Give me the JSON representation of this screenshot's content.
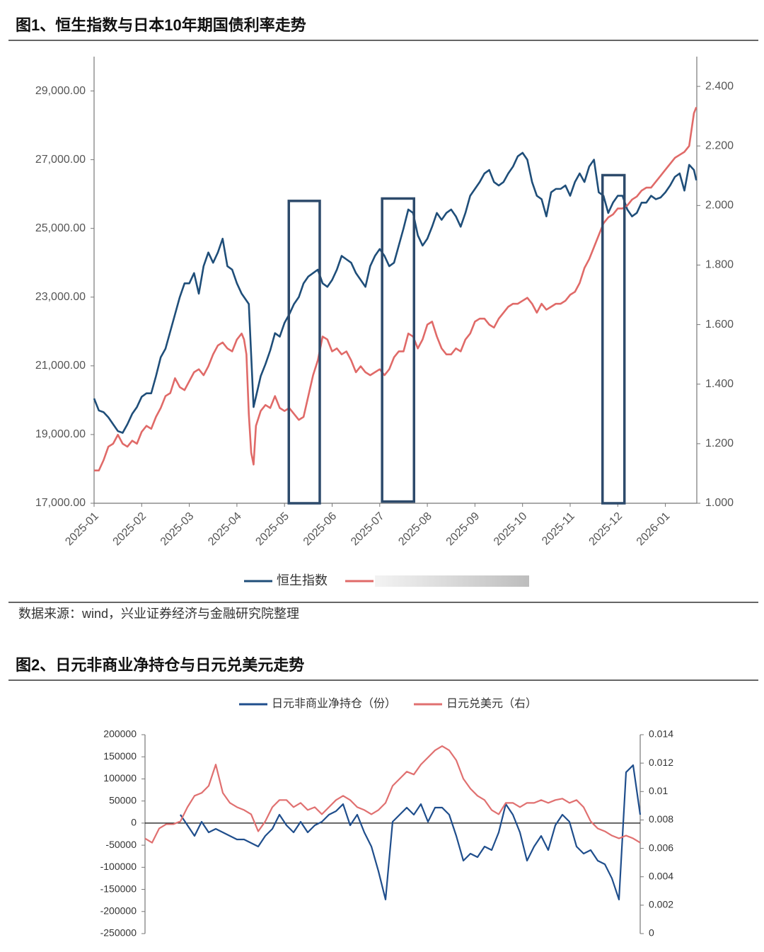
{
  "chart_data": [
    {
      "type": "line",
      "title": "图1、恒生指数与日本10年期国债利率走势",
      "x": [
        0,
        0.1,
        0.2,
        0.3,
        0.4,
        0.5,
        0.6,
        0.7,
        0.8,
        0.9,
        1,
        1.1,
        1.2,
        1.3,
        1.4,
        1.5,
        1.6,
        1.7,
        1.8,
        1.9,
        2,
        2.1,
        2.2,
        2.3,
        2.4,
        2.5,
        2.6,
        2.7,
        2.8,
        2.9,
        3,
        3.1,
        3.15,
        3.2,
        3.25,
        3.3,
        3.35,
        3.4,
        3.5,
        3.6,
        3.7,
        3.8,
        3.9,
        4,
        4.1,
        4.2,
        4.3,
        4.4,
        4.5,
        4.6,
        4.7,
        4.8,
        4.9,
        5,
        5.1,
        5.2,
        5.3,
        5.4,
        5.5,
        5.6,
        5.7,
        5.8,
        5.9,
        6,
        6.1,
        6.2,
        6.3,
        6.4,
        6.5,
        6.6,
        6.7,
        6.8,
        6.9,
        7,
        7.1,
        7.2,
        7.3,
        7.4,
        7.5,
        7.6,
        7.7,
        7.8,
        7.9,
        8,
        8.1,
        8.2,
        8.3,
        8.4,
        8.5,
        8.6,
        8.7,
        8.8,
        8.9,
        9,
        9.1,
        9.2,
        9.3,
        9.4,
        9.5,
        9.6,
        9.7,
        9.8,
        9.9,
        10,
        10.1,
        10.2,
        10.3,
        10.4,
        10.5,
        10.6,
        10.7,
        10.8,
        10.9,
        11,
        11.1,
        11.2,
        11.3,
        11.4,
        11.5,
        11.6,
        11.7,
        11.8,
        11.9,
        12,
        12.1,
        12.2,
        12.3,
        12.4,
        12.5,
        12.6,
        12.65
      ],
      "series": [
        {
          "name": "恒生指数",
          "color": "#1f4e79",
          "values": [
            20050,
            19700,
            19650,
            19500,
            19300,
            19100,
            19050,
            19300,
            19600,
            19800,
            20100,
            20200,
            20200,
            20700,
            21250,
            21500,
            22000,
            22500,
            23000,
            23400,
            23400,
            23700,
            23100,
            23900,
            24300,
            24000,
            24300,
            24700,
            23900,
            23800,
            23400,
            23100,
            23000,
            22900,
            22800,
            21300,
            19800,
            20100,
            20700,
            21050,
            21450,
            21950,
            21850,
            22250,
            22500,
            22800,
            23000,
            23400,
            23600,
            23700,
            23800,
            23400,
            23300,
            23500,
            23800,
            24200,
            24100,
            24000,
            23700,
            23500,
            23300,
            23900,
            24200,
            24400,
            24200,
            23900,
            24000,
            24500,
            25000,
            25550,
            25450,
            24800,
            24500,
            24700,
            25050,
            25450,
            25250,
            25450,
            25550,
            25350,
            25050,
            25450,
            25950,
            26150,
            26350,
            26600,
            26700,
            26350,
            26250,
            26350,
            26600,
            26800,
            27100,
            27200,
            27000,
            26350,
            25950,
            25850,
            25350,
            26050,
            26150,
            26150,
            26250,
            25950,
            26350,
            26600,
            26350,
            26800,
            27000,
            26050,
            25950,
            25450,
            25750,
            25950,
            25950,
            25550,
            25350,
            25450,
            25750,
            25750,
            25950,
            25850,
            25900,
            26050,
            26250,
            26500,
            26600,
            26100,
            26850,
            26700,
            26400
          ]
        },
        {
          "color": "#e06a68",
          "axis": "y2",
          "values": [
            1.11,
            1.11,
            1.145,
            1.19,
            1.2,
            1.23,
            1.2,
            1.19,
            1.21,
            1.2,
            1.24,
            1.26,
            1.25,
            1.29,
            1.32,
            1.36,
            1.37,
            1.42,
            1.39,
            1.38,
            1.41,
            1.44,
            1.45,
            1.43,
            1.46,
            1.5,
            1.53,
            1.54,
            1.52,
            1.51,
            1.55,
            1.57,
            1.55,
            1.5,
            1.3,
            1.17,
            1.13,
            1.26,
            1.31,
            1.33,
            1.32,
            1.36,
            1.32,
            1.31,
            1.32,
            1.3,
            1.28,
            1.29,
            1.36,
            1.43,
            1.48,
            1.56,
            1.55,
            1.51,
            1.52,
            1.5,
            1.51,
            1.48,
            1.44,
            1.46,
            1.44,
            1.43,
            1.44,
            1.45,
            1.43,
            1.45,
            1.49,
            1.51,
            1.51,
            1.57,
            1.56,
            1.52,
            1.55,
            1.6,
            1.61,
            1.56,
            1.52,
            1.5,
            1.5,
            1.52,
            1.51,
            1.55,
            1.57,
            1.61,
            1.62,
            1.62,
            1.6,
            1.59,
            1.62,
            1.64,
            1.66,
            1.67,
            1.67,
            1.68,
            1.69,
            1.67,
            1.64,
            1.67,
            1.65,
            1.66,
            1.67,
            1.67,
            1.68,
            1.7,
            1.71,
            1.74,
            1.79,
            1.82,
            1.86,
            1.9,
            1.94,
            1.96,
            1.97,
            1.99,
            1.99,
            2,
            2.02,
            2.03,
            2.05,
            2.06,
            2.06,
            2.08,
            2.1,
            2.12,
            2.14,
            2.16,
            2.17,
            2.18,
            2.2,
            2.31,
            2.33
          ]
        }
      ],
      "xlim": [
        0,
        12.66
      ],
      "xticks": [
        {
          "value": 0,
          "label": "2025-01"
        },
        {
          "value": 1,
          "label": "2025-02"
        },
        {
          "value": 2,
          "label": "2025-03"
        },
        {
          "value": 3,
          "label": "2025-04"
        },
        {
          "value": 4,
          "label": "2025-05"
        },
        {
          "value": 5,
          "label": "2025-06"
        },
        {
          "value": 6,
          "label": "2025-07"
        },
        {
          "value": 7,
          "label": "2025-08"
        },
        {
          "value": 8,
          "label": "2025-09"
        },
        {
          "value": 9,
          "label": "2025-10"
        },
        {
          "value": 10,
          "label": "2025-11"
        },
        {
          "value": 11,
          "label": "2025-12"
        },
        {
          "value": 12,
          "label": "2026-01"
        }
      ],
      "ylim": [
        17000,
        30000
      ],
      "yticks": [
        {
          "value": 17000,
          "label": "17,000.00"
        },
        {
          "value": 19000,
          "label": "19,000.00"
        },
        {
          "value": 21000,
          "label": "21,000.00"
        },
        {
          "value": 23000,
          "label": "23,000.00"
        },
        {
          "value": 25000,
          "label": "25,000.00"
        },
        {
          "value": 27000,
          "label": "27,000.00"
        },
        {
          "value": 29000,
          "label": "29,000.00"
        }
      ],
      "y2lim": [
        1,
        2.5
      ],
      "y2ticks": [
        {
          "value": 1,
          "label": "1.000"
        },
        {
          "value": 1.2,
          "label": "1.200"
        },
        {
          "value": 1.4,
          "label": "1.400"
        },
        {
          "value": 1.6,
          "label": "1.600"
        },
        {
          "value": 1.8,
          "label": "1.800"
        },
        {
          "value": 2,
          "label": "2.000"
        },
        {
          "value": 2.2,
          "label": "2.200"
        },
        {
          "value": 2.4,
          "label": "2.400"
        }
      ],
      "highlight_boxes": [
        {
          "x": [
            4.09,
            4.74
          ],
          "y": [
            17000,
            25800
          ]
        },
        {
          "x": [
            6.05,
            6.72
          ],
          "y": [
            17050,
            25870
          ]
        },
        {
          "x": [
            10.68,
            11.14
          ],
          "y": [
            17000,
            26550
          ]
        }
      ],
      "box_color": "#2d4a6b"
    },
    {
      "type": "line",
      "title": "图2、日元非商业净持仓与日元兑美元走势",
      "series": [
        {
          "name": "日元非商业净持仓（份）",
          "color": "#1f4e8c",
          "values": [
            null,
            null,
            null,
            null,
            null,
            19000,
            -5000,
            -29000,
            3000,
            -21000,
            -13000,
            -21000,
            -29000,
            -37000,
            -37000,
            -45000,
            -53000,
            -29000,
            -13000,
            19000,
            -5000,
            -21000,
            3000,
            -21000,
            -5000,
            3000,
            19000,
            27000,
            43000,
            -5000,
            19000,
            -21000,
            -53000,
            -109000,
            -173000,
            3000,
            19000,
            35000,
            19000,
            43000,
            3000,
            35000,
            35000,
            19000,
            -29000,
            -85000,
            -69000,
            -77000,
            -53000,
            -61000,
            -21000,
            43000,
            19000,
            -21000,
            -85000,
            -53000,
            -29000,
            -61000,
            -5000,
            19000,
            3000,
            -53000,
            -69000,
            -61000,
            -85000,
            -93000,
            -125000,
            -173000,
            115000,
            131000,
            19000
          ]
        },
        {
          "name": "日元兑美元（右）",
          "color": "#e07070",
          "axis": "y2",
          "values": [
            0.0067,
            0.0064,
            0.0074,
            0.0077,
            0.0077,
            0.0079,
            0.0089,
            0.0097,
            0.0099,
            0.0104,
            0.0119,
            0.0099,
            0.0092,
            0.0089,
            0.0087,
            0.0084,
            0.0072,
            0.0079,
            0.0089,
            0.0094,
            0.0094,
            0.0089,
            0.0092,
            0.0087,
            0.0089,
            0.0084,
            0.0089,
            0.0094,
            0.0097,
            0.0094,
            0.0089,
            0.0087,
            0.0084,
            0.0087,
            0.0092,
            0.0104,
            0.0109,
            0.0114,
            0.0112,
            0.0119,
            0.0124,
            0.0129,
            0.0132,
            0.0129,
            0.0122,
            0.0109,
            0.0102,
            0.0097,
            0.0094,
            0.0087,
            0.0084,
            0.0092,
            0.0092,
            0.0089,
            0.0092,
            0.0092,
            0.0094,
            0.0092,
            0.0094,
            0.0095,
            0.0092,
            0.0094,
            0.0089,
            0.0079,
            0.0074,
            0.0072,
            0.0069,
            0.0067,
            0.0069,
            0.0067,
            0.0064
          ]
        }
      ],
      "ylim": [
        -250000,
        200000
      ],
      "yticks": [
        -250000,
        -200000,
        -150000,
        -100000,
        -50000,
        0,
        50000,
        100000,
        150000,
        200000
      ],
      "y2lim": [
        0,
        0.014
      ],
      "y2ticks": [
        0,
        0.002,
        0.004,
        0.006,
        0.008,
        0.01,
        0.012,
        0.014
      ]
    }
  ],
  "source": "数据来源：wind，兴业证券经济与金融研究院整理"
}
